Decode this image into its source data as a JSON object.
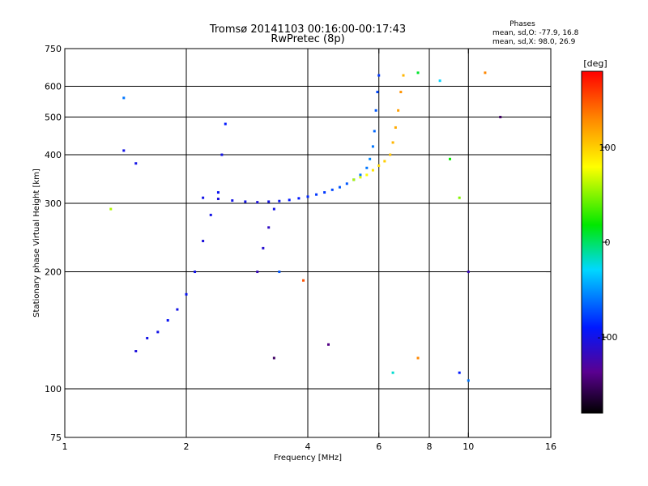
{
  "chart_data": {
    "type": "scatter",
    "title": "Tromsø 20141103 00:16:00-00:17:43",
    "subtitle": "RwPretec (8p)",
    "xlabel": "Frequency [MHz]",
    "ylabel": "Stationary phase Virtual Height [km]",
    "xscale": "log",
    "yscale": "log",
    "xlim": [
      1,
      16
    ],
    "ylim": [
      75,
      750
    ],
    "xticks": [
      1,
      2,
      4,
      6,
      8,
      10,
      16
    ],
    "xtick_labels": [
      "1",
      "2",
      "4",
      "6",
      "8",
      "10",
      "16"
    ],
    "yticks": [
      75,
      100,
      200,
      300,
      400,
      500,
      600,
      750
    ],
    "ytick_labels": [
      "75",
      "100",
      "200",
      "300",
      "400",
      "500",
      "600",
      "750"
    ],
    "grid_x": [
      2,
      4,
      6,
      8,
      10
    ],
    "grid_y": [
      100,
      200,
      300,
      400,
      500,
      600
    ],
    "stats": {
      "heading": "Phases",
      "line_o": "mean, sd,O: -77.9, 16.8",
      "line_x": "mean, sd,X:  98.0, 26.9"
    },
    "colorbar": {
      "label": "[deg]",
      "range": [
        -180,
        180
      ],
      "ticks": [
        100,
        0,
        -100
      ],
      "tick_labels": [
        "100",
        "0",
        "-100"
      ],
      "colormap": "rainbow"
    },
    "series": [
      {
        "name": "F-layer trace (O)",
        "points": [
          [
            2.2,
            310,
            -100
          ],
          [
            2.4,
            308,
            -105
          ],
          [
            2.6,
            305,
            -100
          ],
          [
            2.8,
            303,
            -100
          ],
          [
            3.0,
            302,
            -105
          ],
          [
            3.2,
            303,
            -100
          ],
          [
            3.4,
            304,
            -95
          ],
          [
            3.6,
            306,
            -90
          ],
          [
            3.8,
            309,
            -90
          ],
          [
            4.0,
            312,
            -85
          ],
          [
            4.2,
            316,
            -80
          ],
          [
            4.4,
            320,
            -80
          ],
          [
            4.6,
            325,
            -75
          ],
          [
            4.8,
            330,
            -70
          ],
          [
            5.0,
            337,
            -70
          ],
          [
            5.2,
            345,
            -65
          ],
          [
            5.4,
            355,
            -60
          ],
          [
            5.6,
            370,
            -60
          ],
          [
            5.7,
            390,
            -55
          ],
          [
            5.8,
            420,
            -60
          ],
          [
            5.85,
            460,
            -65
          ],
          [
            5.9,
            520,
            -70
          ],
          [
            5.95,
            580,
            -75
          ],
          [
            6.0,
            640,
            -80
          ]
        ]
      },
      {
        "name": "F-layer trace (X)",
        "points": [
          [
            5.2,
            345,
            60
          ],
          [
            5.4,
            350,
            70
          ],
          [
            5.6,
            355,
            80
          ],
          [
            5.8,
            365,
            90
          ],
          [
            6.0,
            375,
            95
          ],
          [
            6.2,
            385,
            100
          ],
          [
            6.4,
            400,
            105
          ],
          [
            6.5,
            430,
            110
          ],
          [
            6.6,
            470,
            115
          ],
          [
            6.7,
            520,
            120
          ],
          [
            6.8,
            580,
            125
          ],
          [
            6.9,
            640,
            110
          ]
        ]
      },
      {
        "name": "Lower trace",
        "points": [
          [
            1.5,
            125,
            -105
          ],
          [
            1.6,
            135,
            -100
          ],
          [
            1.7,
            140,
            -100
          ],
          [
            1.8,
            150,
            -95
          ],
          [
            1.9,
            160,
            -100
          ],
          [
            2.0,
            175,
            -95
          ],
          [
            2.1,
            200,
            -100
          ],
          [
            2.2,
            240,
            -105
          ],
          [
            2.3,
            280,
            -100
          ],
          [
            2.4,
            320,
            -95
          ],
          [
            2.45,
            400,
            -100
          ],
          [
            2.5,
            480,
            -90
          ]
        ]
      },
      {
        "name": "Secondary cluster",
        "points": [
          [
            3.0,
            200,
            -120
          ],
          [
            3.1,
            230,
            -110
          ],
          [
            3.2,
            260,
            -115
          ],
          [
            3.3,
            290,
            -100
          ],
          [
            3.4,
            200,
            -70
          ],
          [
            3.9,
            190,
            150
          ]
        ]
      },
      {
        "name": "Scattered echoes",
        "points": [
          [
            1.4,
            560,
            -60
          ],
          [
            1.4,
            410,
            -100
          ],
          [
            1.5,
            380,
            -100
          ],
          [
            1.3,
            290,
            60
          ],
          [
            7.5,
            650,
            10
          ],
          [
            8.5,
            620,
            -30
          ],
          [
            9.0,
            390,
            20
          ],
          [
            9.5,
            310,
            50
          ],
          [
            10.0,
            200,
            -120
          ],
          [
            11.0,
            650,
            130
          ],
          [
            12.0,
            500,
            -150
          ],
          [
            6.5,
            110,
            -20
          ],
          [
            7.5,
            120,
            130
          ],
          [
            9.5,
            110,
            -90
          ],
          [
            10.0,
            105,
            -60
          ],
          [
            4.5,
            130,
            -140
          ],
          [
            3.3,
            120,
            -150
          ]
        ]
      }
    ]
  }
}
